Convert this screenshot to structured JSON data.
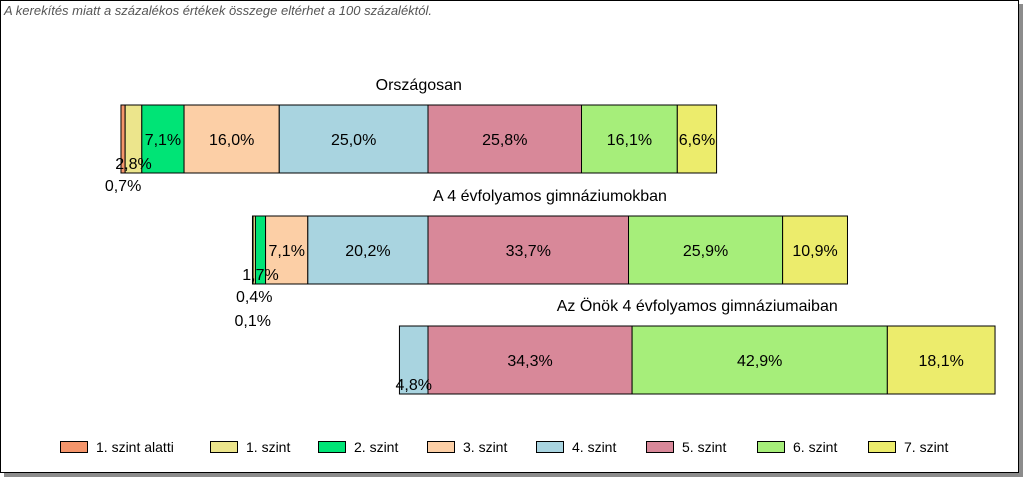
{
  "note": "A kerekítés miatt a  százalékos értékek összege eltérhet a 100 százaléktól.",
  "chart_data": {
    "type": "bar",
    "orientation": "horizontal",
    "stacked": true,
    "unit": "%",
    "levels": [
      "1. szint alatti",
      "1. szint",
      "2. szint",
      "3. szint",
      "4. szint",
      "5. szint",
      "6. szint",
      "7. szint"
    ],
    "colors": [
      "#f4956b",
      "#ece58c",
      "#00e476",
      "#fccfa6",
      "#a9d4e0",
      "#d88899",
      "#a6ee7a",
      "#ecec6c"
    ],
    "bars": [
      {
        "title": "Országosan",
        "values": [
          0.7,
          2.8,
          7.1,
          16.0,
          25.0,
          25.8,
          16.1,
          6.6
        ],
        "labels": [
          "0,7%",
          "2,8%",
          "7,1%",
          "16,0%",
          "25,0%",
          "25,8%",
          "16,1%",
          "6,6%"
        ]
      },
      {
        "title": "A 4 évfolyamos gimnáziumokban",
        "values": [
          0.1,
          0.4,
          1.7,
          7.1,
          20.2,
          33.7,
          25.9,
          10.9
        ],
        "labels": [
          "0,1%",
          "0,4%",
          "1,7%",
          "7,1%",
          "20,2%",
          "33,7%",
          "25,9%",
          "10,9%"
        ]
      },
      {
        "title": "Az Önök 4 évfolyamos gimnáziumaiban",
        "values": [
          0,
          0,
          0,
          0,
          4.8,
          34.3,
          42.9,
          18.1
        ],
        "labels": [
          "",
          "",
          "",
          "",
          "4,8%",
          "34,3%",
          "42,9%",
          "18,1%"
        ]
      }
    ],
    "legend_position": "bottom",
    "grid": false
  }
}
